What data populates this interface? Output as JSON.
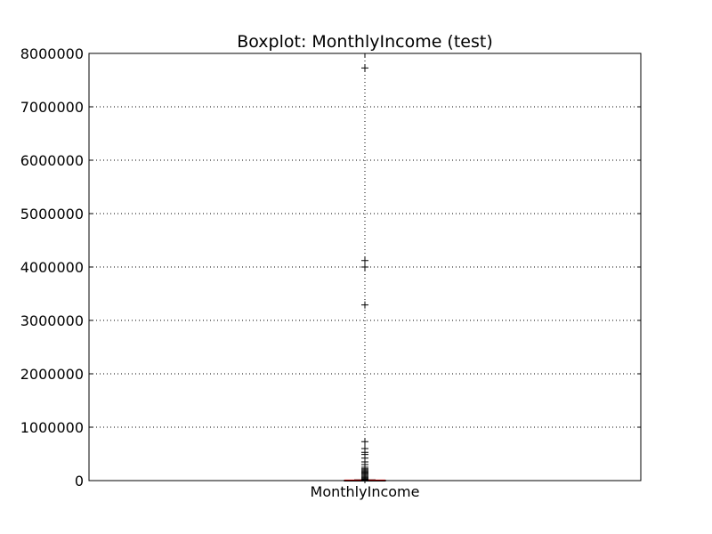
{
  "chart_data": {
    "type": "boxplot",
    "title": "Boxplot: MonthlyIncome (test)",
    "xlabel": "",
    "ylabel": "",
    "categories": [
      "MonthlyIncome"
    ],
    "ylim": [
      0,
      8000000
    ],
    "yticks": [
      0,
      1000000,
      2000000,
      3000000,
      4000000,
      5000000,
      6000000,
      7000000,
      8000000
    ],
    "ytick_labels": [
      "0",
      "1000000",
      "2000000",
      "3000000",
      "4000000",
      "5000000",
      "6000000",
      "7000000",
      "8000000"
    ],
    "grid": true,
    "box": {
      "q1": 3400,
      "median": 5400,
      "q3": 8200,
      "whisker_low": 0,
      "whisker_high": 15400
    },
    "outliers": [
      7727000,
      4120000,
      4000000,
      3290000,
      730000,
      600000,
      530000,
      490000,
      420000,
      350000,
      300000,
      250000,
      220000,
      200000,
      180000,
      160000,
      140000,
      120000,
      100000,
      80000,
      60000,
      40000,
      30000,
      25000,
      20000,
      17000
    ],
    "colors": {
      "box": "#000000",
      "median": "#ff0000",
      "whisker": "#0000ff",
      "outlier": "#000000",
      "grid": "#000000"
    }
  }
}
